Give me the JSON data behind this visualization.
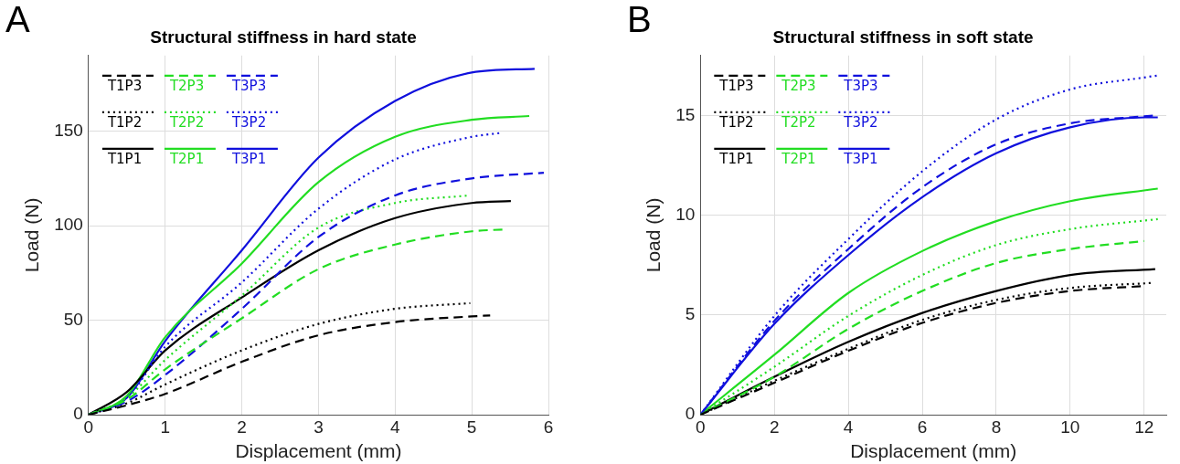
{
  "chart_data": [
    {
      "type": "line",
      "title": "Structural stiffness in hard state",
      "xlabel": "Displacement (mm)",
      "ylabel": "Load (N)",
      "annotations": [
        "A"
      ],
      "xlim": [
        0,
        6
      ],
      "xticks": [
        0,
        1,
        2,
        3,
        4,
        5,
        6
      ],
      "ylim": [
        0,
        190
      ],
      "yticks": [
        0,
        50,
        100,
        150
      ],
      "grid": true,
      "legend": "top left",
      "series": [
        {
          "name": "T1P3",
          "color": "#000000",
          "line_style": "dashed",
          "x": [
            0,
            0.5,
            1,
            2,
            3,
            4,
            5,
            5.24
          ],
          "values": [
            0,
            5,
            11,
            28,
            42,
            49,
            52,
            52.5
          ]
        },
        {
          "name": "T2P3",
          "color": "#22dd22",
          "line_style": "dashed",
          "x": [
            0,
            0.5,
            1,
            2,
            3,
            4,
            5,
            5.42
          ],
          "values": [
            0,
            8,
            24,
            51,
            77,
            90,
            97,
            98
          ]
        },
        {
          "name": "T3P3",
          "color": "#1010dd",
          "line_style": "dashed",
          "x": [
            0,
            0.5,
            1,
            2,
            3,
            4,
            5,
            5.94
          ],
          "values": [
            0,
            7,
            21,
            56,
            94,
            116,
            125,
            128
          ]
        },
        {
          "name": "T1P2",
          "color": "#000000",
          "line_style": "dotted",
          "x": [
            0,
            0.5,
            1,
            2,
            3,
            4,
            4.98
          ],
          "values": [
            0,
            6,
            16,
            34,
            48,
            56,
            59
          ]
        },
        {
          "name": "T2P2",
          "color": "#22dd22",
          "line_style": "dotted",
          "x": [
            0,
            0.5,
            1,
            2,
            3,
            4,
            4.97
          ],
          "values": [
            0,
            9,
            29,
            63,
            99,
            112,
            116
          ]
        },
        {
          "name": "T3P2",
          "color": "#1010dd",
          "line_style": "dotted",
          "x": [
            0,
            0.5,
            1,
            2,
            3,
            4,
            5,
            5.37
          ],
          "values": [
            0,
            9,
            36,
            70,
            109,
            135,
            147,
            149
          ]
        },
        {
          "name": "T1P1",
          "color": "#000000",
          "line_style": "solid",
          "x": [
            0,
            0.5,
            1,
            2,
            3,
            4,
            5,
            5.51
          ],
          "values": [
            0,
            12,
            34,
            62,
            87,
            104,
            112,
            113
          ]
        },
        {
          "name": "T2P1",
          "color": "#22dd22",
          "line_style": "solid",
          "x": [
            0,
            0.5,
            1,
            2,
            3,
            4,
            5,
            5.75
          ],
          "values": [
            0,
            10,
            41,
            80,
            123,
            147,
            156,
            158
          ]
        },
        {
          "name": "T3P1",
          "color": "#1010dd",
          "line_style": "solid",
          "x": [
            0,
            0.5,
            1,
            2,
            3,
            4,
            5,
            5.82
          ],
          "values": [
            0,
            9,
            39,
            87,
            136,
            166,
            181,
            183
          ]
        }
      ]
    },
    {
      "type": "line",
      "title": "Structural stiffness in soft state",
      "xlabel": "Displacement (mm)",
      "ylabel": "Load (N)",
      "annotations": [
        "B"
      ],
      "xlim": [
        0,
        12.6
      ],
      "xticks": [
        0,
        2,
        4,
        6,
        8,
        10,
        12
      ],
      "ylim": [
        0,
        18
      ],
      "yticks": [
        0,
        5,
        10,
        15
      ],
      "grid": true,
      "legend": "top left",
      "series": [
        {
          "name": "T1P3",
          "color": "#000000",
          "line_style": "dashed",
          "x": [
            0,
            2,
            4,
            6,
            8,
            10,
            12.05
          ],
          "values": [
            0,
            1.6,
            3.2,
            4.6,
            5.6,
            6.2,
            6.45
          ]
        },
        {
          "name": "T2P3",
          "color": "#22dd22",
          "line_style": "dashed",
          "x": [
            0,
            2,
            4,
            6,
            8,
            10,
            12
          ],
          "values": [
            0,
            1.9,
            4.3,
            6.2,
            7.6,
            8.3,
            8.7
          ]
        },
        {
          "name": "T3P3",
          "color": "#1010dd",
          "line_style": "dashed",
          "x": [
            0,
            2,
            4,
            6,
            8,
            10,
            12,
            12.37
          ],
          "values": [
            0,
            4.7,
            8.3,
            11.4,
            13.55,
            14.6,
            14.95,
            15
          ]
        },
        {
          "name": "T1P2",
          "color": "#000000",
          "line_style": "dotted",
          "x": [
            0,
            2,
            4,
            6,
            8,
            10,
            12.2
          ],
          "values": [
            0,
            1.7,
            3.3,
            4.75,
            5.75,
            6.35,
            6.6
          ]
        },
        {
          "name": "T2P2",
          "color": "#22dd22",
          "line_style": "dotted",
          "x": [
            0,
            2,
            4,
            6,
            8,
            10,
            12.37
          ],
          "values": [
            0,
            2.4,
            4.95,
            7,
            8.5,
            9.3,
            9.8
          ]
        },
        {
          "name": "T3P2",
          "color": "#1010dd",
          "line_style": "dotted",
          "x": [
            0,
            2,
            4,
            6,
            8,
            10,
            12,
            12.37
          ],
          "values": [
            0,
            4.95,
            8.8,
            12.2,
            14.8,
            16.3,
            16.9,
            17
          ]
        },
        {
          "name": "T1P1",
          "color": "#000000",
          "line_style": "solid",
          "x": [
            0,
            2,
            4,
            6,
            8,
            10,
            12.3
          ],
          "values": [
            0,
            1.9,
            3.65,
            5.1,
            6.2,
            7,
            7.3
          ]
        },
        {
          "name": "T2P1",
          "color": "#22dd22",
          "line_style": "solid",
          "x": [
            0,
            2,
            4,
            6,
            8,
            10,
            12.37
          ],
          "values": [
            0,
            3,
            6.1,
            8.2,
            9.7,
            10.7,
            11.33
          ]
        },
        {
          "name": "T3P1",
          "color": "#1010dd",
          "line_style": "solid",
          "x": [
            0,
            2,
            4,
            6,
            8,
            10,
            12,
            12.37
          ],
          "values": [
            0,
            4.55,
            8,
            10.9,
            13.1,
            14.4,
            14.9,
            14.9
          ]
        }
      ]
    }
  ]
}
